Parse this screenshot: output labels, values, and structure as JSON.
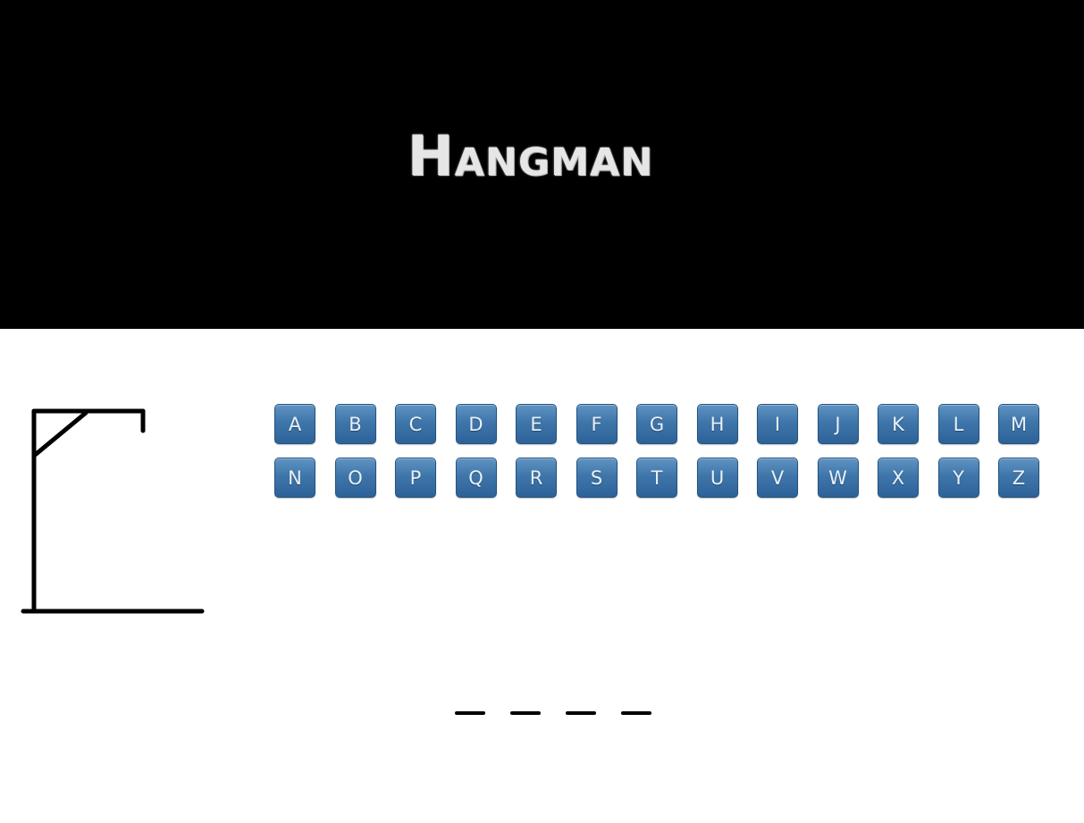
{
  "header": {
    "title": "Hangman"
  },
  "keyboard": {
    "letters": [
      "A",
      "B",
      "C",
      "D",
      "E",
      "F",
      "G",
      "H",
      "I",
      "J",
      "K",
      "L",
      "M",
      "N",
      "O",
      "P",
      "Q",
      "R",
      "S",
      "T",
      "U",
      "V",
      "W",
      "X",
      "Y",
      "Z"
    ],
    "key_color": "#3f76aa"
  },
  "word": {
    "blanks": 4
  },
  "colors": {
    "header_bg": "#000000",
    "page_bg": "#ffffff",
    "title": "#e6e6e6"
  }
}
